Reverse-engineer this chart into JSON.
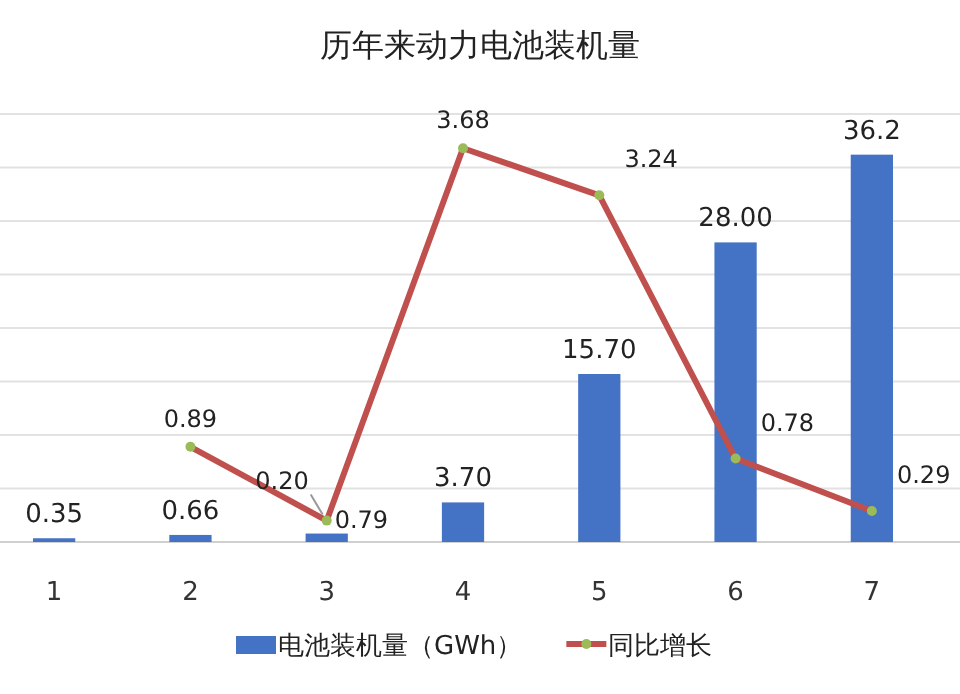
{
  "chart_data": {
    "type": "bar",
    "title": "历年来动力电池装机量",
    "categories": [
      "1",
      "2",
      "3",
      "4",
      "5",
      "6",
      "7"
    ],
    "series": [
      {
        "name": "电池装机量（GWh）",
        "color": "#4472c4",
        "values": [
          0.35,
          0.66,
          0.79,
          3.7,
          15.7,
          28.0,
          36.2
        ],
        "value_labels": [
          "0.35",
          "0.66",
          "0.79",
          "3.70",
          "15.70",
          "28.00",
          "36.2"
        ]
      },
      {
        "name": "同比增长",
        "type": "line",
        "axis": "y2",
        "color": "#c0504d",
        "marker": "circle",
        "values": [
          null,
          0.89,
          0.2,
          3.68,
          3.24,
          0.78,
          0.29
        ],
        "value_labels": [
          null,
          "0.89",
          "0.20",
          "3.68",
          "3.24",
          "0.78",
          "0.29"
        ]
      }
    ],
    "ylim": [
      0,
      40
    ],
    "yticks": [
      {
        "value": 0,
        "label": null
      },
      {
        "value": 5,
        "label": null
      },
      {
        "value": 10,
        "label": null
      },
      {
        "value": 15,
        "label": null
      },
      {
        "value": 20,
        "label": null
      },
      {
        "value": 25,
        "label": null
      },
      {
        "value": 30,
        "label": null
      },
      {
        "value": 35,
        "label": null
      },
      {
        "value": 40,
        "label": null
      }
    ],
    "y2lim": [
      0,
      4
    ],
    "grid": "y",
    "legend": "bottom"
  }
}
